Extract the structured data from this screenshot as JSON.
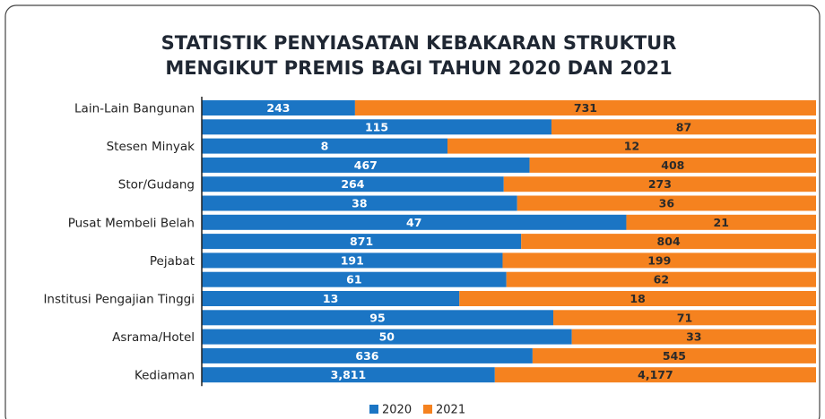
{
  "chart_data": {
    "type": "stacked-bar-100",
    "title": [
      "STATISTIK PENYIASATAN KEBAKARAN STRUKTUR",
      "MENGIKUT PREMIS BAGI TAHUN 2020 DAN 2021"
    ],
    "categories": [
      "Lain-Lain Bangunan",
      null,
      "Stesen Minyak",
      null,
      "Stor/Gudang",
      null,
      "Pusat Membeli Belah",
      null,
      "Pejabat",
      null,
      "Institusi Pengajian Tinggi",
      null,
      "Asrama/Hotel",
      null,
      "Kediaman"
    ],
    "series": [
      {
        "name": "2020",
        "color": "#1b75c4",
        "values": [
          243,
          115,
          8,
          467,
          264,
          38,
          47,
          871,
          191,
          61,
          13,
          95,
          50,
          636,
          3811
        ],
        "value_labels": [
          "243",
          "115",
          "8",
          "467",
          "264",
          "38",
          "47",
          "871",
          "191",
          "61",
          "13",
          "95",
          "50",
          "636",
          "3,811"
        ]
      },
      {
        "name": "2021",
        "color": "#f5821f",
        "values": [
          731,
          87,
          12,
          408,
          273,
          36,
          21,
          804,
          199,
          62,
          18,
          71,
          33,
          545,
          4177
        ],
        "value_labels": [
          "731",
          "87",
          "12",
          "408",
          "273",
          "36",
          "21",
          "804",
          "199",
          "62",
          "18",
          "71",
          "33",
          "545",
          "4,177"
        ]
      }
    ],
    "legend": "bottom"
  }
}
